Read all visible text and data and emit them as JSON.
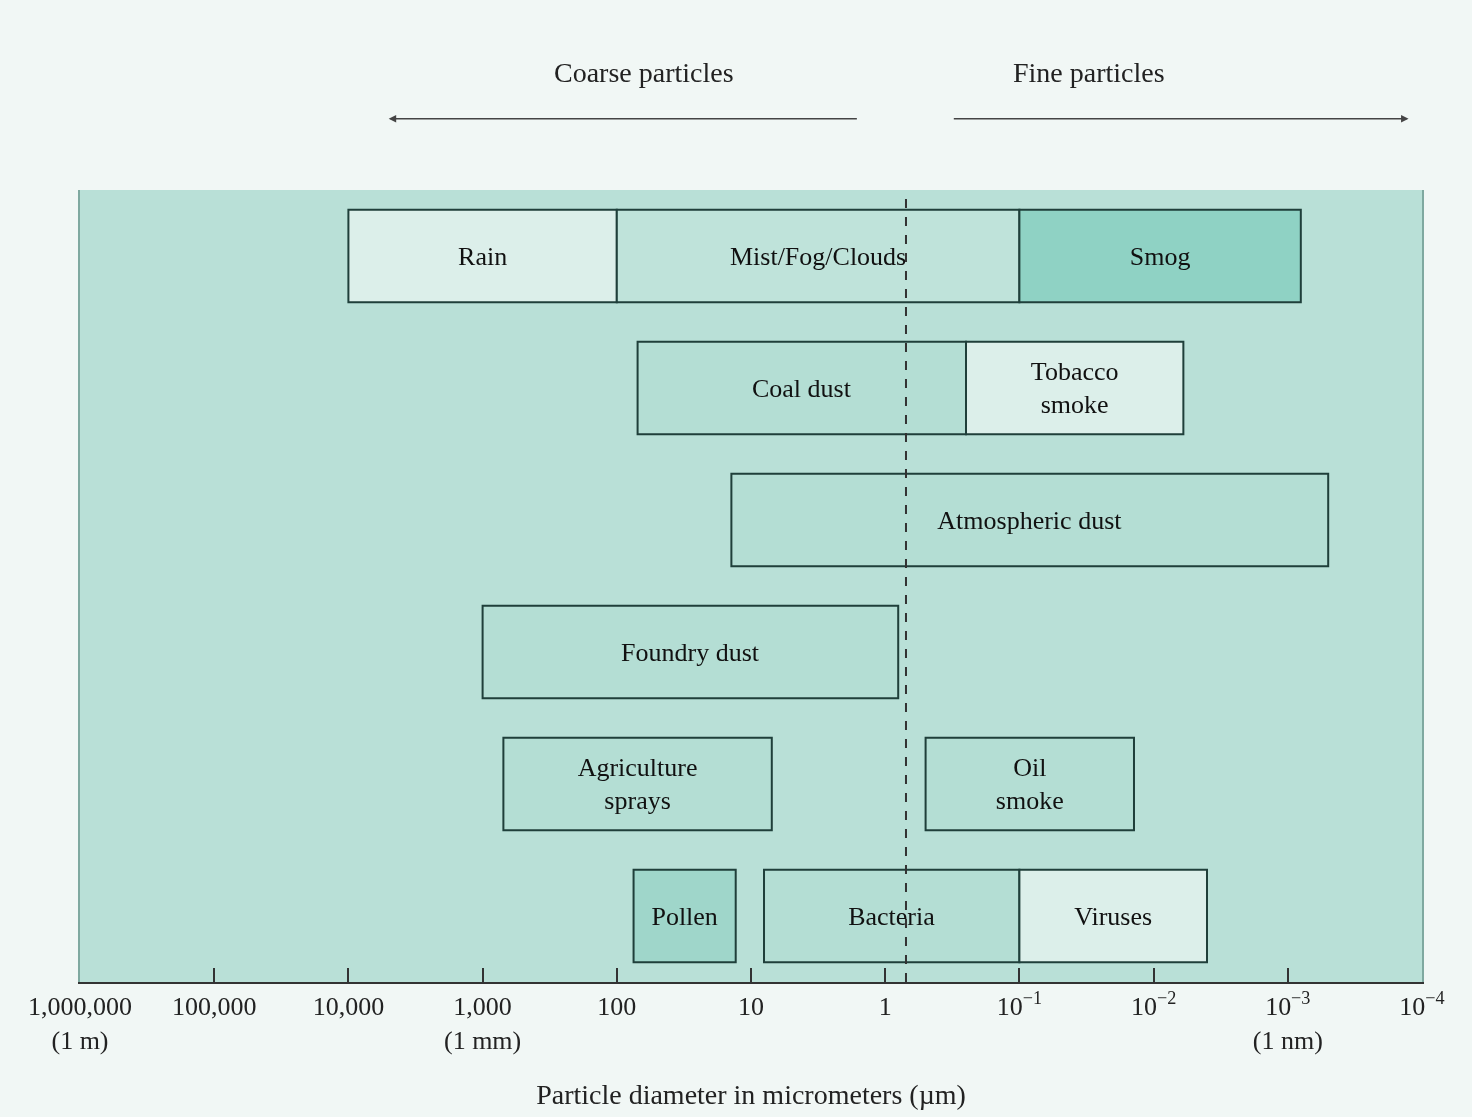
{
  "chart_data": {
    "type": "bar",
    "orientation": "horizontal",
    "xlabel": "Particle diameter in micrometers (µm)",
    "categories": [
      null,
      null,
      null,
      null,
      null,
      null
    ],
    "xlim": [
      1000000,
      0.0001
    ],
    "xticks": [
      {
        "value": 1000000,
        "label": "1,000,000\n(1 m)"
      },
      {
        "value": 100000,
        "label": "100,000"
      },
      {
        "value": 10000,
        "label": "10,000"
      },
      {
        "value": 1000,
        "label": "1,000\n(1 mm)"
      },
      100,
      10,
      1,
      {
        "value": 0.1,
        "label": "10$^{−1}$"
      },
      {
        "value": 0.01,
        "label": "10$^{−2}$"
      },
      {
        "value": 0.001,
        "label": "10$^{−3}$\n(1 nm)"
      },
      {
        "value": 0.0001,
        "label": "10$^{−4}$"
      }
    ],
    "log": "x",
    "grid": false,
    "legend": false,
    "tick_labels": "x",
    "series": [
      {
        "name": "Rain",
        "color": "#dcefea",
        "base": [
          100,
          null,
          null,
          null,
          null,
          null
        ],
        "values": [
          9900,
          null,
          null,
          null,
          null,
          null
        ]
      },
      {
        "name": "Mist/Fog/Clouds",
        "color": "#bfe3da",
        "base": [
          0.1,
          null,
          null,
          null,
          null,
          null
        ],
        "values": [
          99.9,
          null,
          null,
          null,
          null,
          null
        ]
      },
      {
        "name": "Smog",
        "color": "#8fd2c4",
        "base": [
          0.0008,
          null,
          null,
          null,
          null,
          null
        ],
        "values": [
          0.0992,
          null,
          null,
          null,
          null,
          null
        ]
      },
      {
        "name": "Coal dust",
        "color": "#b4ded4",
        "base": [
          null,
          0.25,
          null,
          null,
          null,
          null
        ],
        "values": [
          null,
          69.75,
          null,
          null,
          null,
          null
        ]
      },
      {
        "name": "Tobacco\nsmoke",
        "color": "#dcefea",
        "base": [
          null,
          0.006,
          null,
          null,
          null,
          null
        ],
        "values": [
          null,
          0.244,
          null,
          null,
          null,
          null
        ]
      },
      {
        "name": "Atmospheric dust",
        "color": "#b4ded4",
        "base": [
          null,
          null,
          0.0005,
          null,
          null,
          null
        ],
        "values": [
          null,
          null,
          13.9995,
          null,
          null,
          null
        ]
      },
      {
        "name": "Foundry dust",
        "color": "#b4ded4",
        "base": [
          null,
          null,
          null,
          0.8,
          null,
          null
        ],
        "values": [
          null,
          null,
          null,
          999.2,
          null,
          null
        ]
      },
      {
        "name": "Agriculture\nsprays",
        "color": "#b4ded4",
        "base": [
          null,
          null,
          null,
          null,
          7,
          null
        ],
        "values": [
          null,
          null,
          null,
          null,
          693,
          null
        ]
      },
      {
        "name": "Oil\nsmoke",
        "color": "#b4ded4",
        "base": [
          null,
          null,
          null,
          null,
          0.014,
          null
        ],
        "values": [
          null,
          null,
          null,
          null,
          0.486,
          null
        ]
      },
      {
        "name": "Pollen",
        "color": "#9fd6ca",
        "base": [
          null,
          null,
          null,
          null,
          null,
          13
        ],
        "values": [
          null,
          null,
          null,
          null,
          null,
          62
        ]
      },
      {
        "name": "Bacteria",
        "color": "#b4ded4",
        "base": [
          null,
          null,
          null,
          null,
          null,
          0.1
        ],
        "values": [
          null,
          null,
          null,
          null,
          null,
          7.9
        ]
      },
      {
        "name": "Viruses",
        "color": "#dcefea",
        "base": [
          null,
          null,
          null,
          null,
          null,
          0.004
        ],
        "values": [
          null,
          null,
          null,
          null,
          null,
          0.096
        ]
      }
    ],
    "ref_lines": [
      {
        "axis": "x",
        "value": 0.7,
        "line_style": "dashed",
        "color": "#333333"
      }
    ],
    "annotations": [
      "Coarse particles",
      "Fine particles"
    ]
  }
}
